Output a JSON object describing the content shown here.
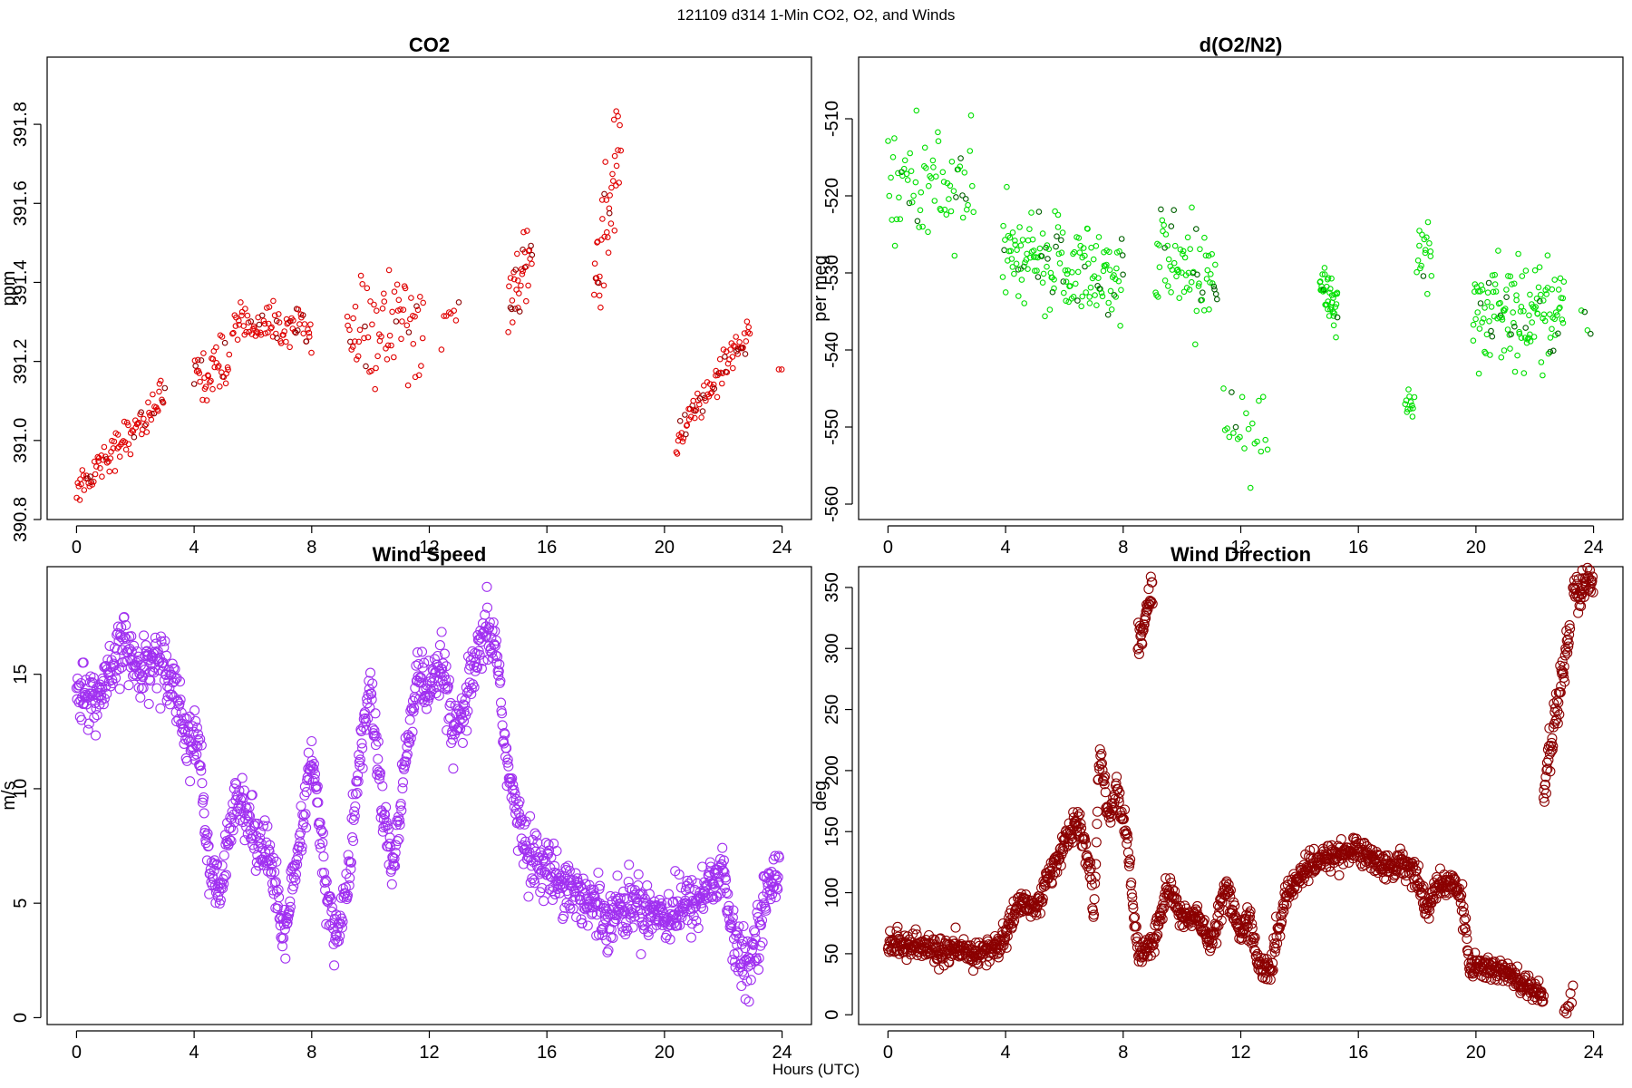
{
  "figure": {
    "main_title": "121109   d314   1-Min CO2, O2, and Winds",
    "shared_xlabel": "Hours (UTC)"
  },
  "chart_data": [
    {
      "type": "scatter",
      "title": "CO2",
      "xlabel": "",
      "ylabel": "ppm",
      "xlim": [
        -1,
        25
      ],
      "ylim": [
        390.8,
        391.97
      ],
      "xticks": [
        0,
        4,
        8,
        12,
        16,
        20,
        24
      ],
      "yticks": [
        390.8,
        391.0,
        391.2,
        391.4,
        391.6,
        391.8
      ],
      "yticklabels": [
        "390.8",
        "391.0",
        "391.2",
        "391.4",
        "391.6",
        "391.8"
      ],
      "grid": false,
      "color": "#e00000",
      "dark_color": "#8a0000",
      "marker_radius_factor": 0.55,
      "segments": [
        {
          "x0": 0.0,
          "x1": 3.0,
          "y0": 390.88,
          "y1": 391.11,
          "n": 90,
          "noise": 0.04
        },
        {
          "x0": 4.0,
          "x1": 5.2,
          "y0": 391.16,
          "y1": 391.2,
          "n": 40,
          "noise": 0.05
        },
        {
          "x0": 5.3,
          "x1": 8.0,
          "y0": 391.3,
          "y1": 391.28,
          "n": 80,
          "noise": 0.04
        },
        {
          "x0": 9.2,
          "x1": 11.8,
          "y0": 391.27,
          "y1": 391.3,
          "n": 70,
          "noise": 0.12
        },
        {
          "x0": 12.4,
          "x1": 13.0,
          "y0": 391.28,
          "y1": 391.3,
          "n": 8,
          "noise": 0.04
        },
        {
          "x0": 14.7,
          "x1": 15.5,
          "y0": 391.35,
          "y1": 391.45,
          "n": 35,
          "noise": 0.07
        },
        {
          "x0": 17.6,
          "x1": 18.5,
          "y0": 391.4,
          "y1": 391.75,
          "n": 40,
          "noise": 0.14
        },
        {
          "x0": 20.4,
          "x1": 22.9,
          "y0": 391.0,
          "y1": 391.28,
          "n": 80,
          "noise": 0.04
        },
        {
          "x0": 23.9,
          "x1": 24.0,
          "y0": 391.18,
          "y1": 391.18,
          "n": 2,
          "noise": 0.0
        }
      ]
    },
    {
      "type": "scatter",
      "title": "d(O2/N2)",
      "xlabel": "",
      "ylabel": "per meg",
      "xlim": [
        -1,
        25
      ],
      "ylim": [
        -562,
        -502
      ],
      "xticks": [
        0,
        4,
        8,
        12,
        16,
        20,
        24
      ],
      "yticks": [
        -560,
        -550,
        -540,
        -530,
        -520,
        -510
      ],
      "yticklabels": [
        "-560",
        "-550",
        "-540",
        "-530",
        "-520",
        "-510"
      ],
      "grid": false,
      "color": "#00e000",
      "dark_color": "#006000",
      "marker_radius_factor": 0.55,
      "segments": [
        {
          "x0": 0.0,
          "x1": 2.9,
          "y0": -518,
          "y1": -520,
          "n": 70,
          "noise": 6.5
        },
        {
          "x0": 3.9,
          "x1": 8.0,
          "y0": -528,
          "y1": -530,
          "n": 150,
          "noise": 5.5
        },
        {
          "x0": 9.1,
          "x1": 11.2,
          "y0": -528,
          "y1": -530,
          "n": 70,
          "noise": 6.0
        },
        {
          "x0": 11.4,
          "x1": 12.9,
          "y0": -548,
          "y1": -552,
          "n": 22,
          "noise": 4.5
        },
        {
          "x0": 14.7,
          "x1": 15.3,
          "y0": -533,
          "y1": -535,
          "n": 40,
          "noise": 4.5
        },
        {
          "x0": 17.6,
          "x1": 17.9,
          "y0": -546,
          "y1": -547,
          "n": 12,
          "noise": 2.5
        },
        {
          "x0": 18.0,
          "x1": 18.5,
          "y0": -526,
          "y1": -526,
          "n": 18,
          "noise": 5.0
        },
        {
          "x0": 19.9,
          "x1": 23.0,
          "y0": -535,
          "y1": -535,
          "n": 130,
          "noise": 5.5
        },
        {
          "x0": 23.6,
          "x1": 23.9,
          "y0": -536,
          "y1": -536,
          "n": 4,
          "noise": 1.5
        }
      ]
    },
    {
      "type": "scatter",
      "title": "Wind Speed",
      "xlabel": "",
      "ylabel": "m/s",
      "xlim": [
        -1,
        25
      ],
      "ylim": [
        -0.3,
        19.7
      ],
      "xticks": [
        0,
        4,
        8,
        12,
        16,
        20,
        24
      ],
      "yticks": [
        0,
        5,
        10,
        15
      ],
      "yticklabels": [
        "0",
        "5",
        "10",
        "15"
      ],
      "grid": false,
      "color": "#a030f0",
      "dark_color": "#a030f0",
      "marker_radius_factor": 1.0,
      "profile": [
        [
          0,
          14.3
        ],
        [
          0.7,
          13.8
        ],
        [
          1.2,
          15.0
        ],
        [
          1.6,
          16.5
        ],
        [
          2.0,
          15.2
        ],
        [
          2.8,
          15.7
        ],
        [
          3.3,
          14.8
        ],
        [
          3.7,
          12.4
        ],
        [
          4.2,
          11.7
        ],
        [
          4.5,
          6.2
        ],
        [
          4.9,
          5.5
        ],
        [
          5.5,
          10.2
        ],
        [
          6.0,
          8.0
        ],
        [
          6.5,
          7.5
        ],
        [
          7.0,
          3.5
        ],
        [
          7.5,
          6.5
        ],
        [
          8.0,
          11.5
        ],
        [
          8.5,
          5.5
        ],
        [
          8.8,
          3.5
        ],
        [
          9.2,
          5.5
        ],
        [
          9.6,
          11.0
        ],
        [
          10.0,
          14.5
        ],
        [
          10.4,
          9.0
        ],
        [
          10.8,
          6.5
        ],
        [
          11.3,
          12.5
        ],
        [
          11.6,
          15.0
        ],
        [
          12.0,
          14.0
        ],
        [
          12.5,
          15.5
        ],
        [
          12.8,
          12.0
        ],
        [
          13.2,
          13.5
        ],
        [
          13.6,
          15.5
        ],
        [
          14.0,
          17.0
        ],
        [
          14.3,
          16.0
        ],
        [
          14.6,
          11.5
        ],
        [
          15.0,
          8.5
        ],
        [
          15.5,
          7.0
        ],
        [
          16.0,
          6.5
        ],
        [
          17.0,
          5.5
        ],
        [
          18.0,
          4.5
        ],
        [
          19.0,
          5.0
        ],
        [
          20.0,
          4.5
        ],
        [
          21.0,
          5.0
        ],
        [
          22.0,
          6.5
        ],
        [
          22.3,
          3.5
        ],
        [
          22.8,
          2.0
        ],
        [
          23.4,
          5.0
        ],
        [
          23.9,
          6.8
        ]
      ],
      "n": 1400,
      "noise": 0.9
    },
    {
      "type": "scatter",
      "title": "Wind Direction",
      "xlabel": "",
      "ylabel": "deg",
      "xlim": [
        -1,
        25
      ],
      "ylim": [
        -8,
        367
      ],
      "xticks": [
        0,
        4,
        8,
        12,
        16,
        20,
        24
      ],
      "yticks": [
        0,
        50,
        100,
        150,
        200,
        250,
        300,
        350
      ],
      "yticklabels": [
        "0",
        "50",
        "100",
        "150",
        "200",
        "250",
        "300",
        "350"
      ],
      "grid": false,
      "color": "#8b0000",
      "dark_color": "#8b0000",
      "marker_radius_factor": 1.0,
      "profile": [
        [
          0,
          60
        ],
        [
          1,
          55
        ],
        [
          2,
          52
        ],
        [
          3,
          50
        ],
        [
          3.7,
          55
        ],
        [
          4.0,
          65
        ],
        [
          4.5,
          95
        ],
        [
          5.0,
          85
        ],
        [
          5.5,
          115
        ],
        [
          6.0,
          140
        ],
        [
          6.5,
          160
        ],
        [
          6.9,
          110
        ],
        [
          7.0,
          80
        ],
        [
          7.2,
          220
        ],
        [
          7.5,
          160
        ],
        [
          7.8,
          185
        ],
        [
          8.1,
          150
        ],
        [
          8.3,
          100
        ],
        [
          8.5,
          50
        ],
        [
          9.0,
          55
        ],
        [
          9.5,
          105
        ],
        [
          10.0,
          80
        ],
        [
          10.5,
          80
        ],
        [
          11.0,
          60
        ],
        [
          11.5,
          105
        ],
        [
          12.0,
          65
        ],
        [
          12.3,
          80
        ],
        [
          12.6,
          40
        ],
        [
          13.0,
          35
        ],
        [
          13.5,
          95
        ],
        [
          14.0,
          115
        ],
        [
          15.0,
          130
        ],
        [
          16.0,
          135
        ],
        [
          17.0,
          120
        ],
        [
          17.5,
          125
        ],
        [
          18.0,
          115
        ],
        [
          18.3,
          85
        ],
        [
          18.7,
          105
        ],
        [
          19.2,
          110
        ],
        [
          19.5,
          95
        ],
        [
          19.8,
          40
        ],
        [
          20.5,
          38
        ],
        [
          21.0,
          35
        ],
        [
          21.5,
          25
        ],
        [
          22.0,
          18
        ],
        [
          22.3,
          17
        ]
      ],
      "n": 1300,
      "noise": 8,
      "extra_clusters": [
        {
          "x0": 8.5,
          "x1": 9.0,
          "y0": 300,
          "y1": 355,
          "n": 35
        },
        {
          "x0": 22.3,
          "x1": 23.2,
          "y0": 180,
          "y1": 320,
          "n": 60
        },
        {
          "x0": 23.3,
          "x1": 24.0,
          "y0": 340,
          "y1": 358,
          "n": 45
        },
        {
          "x0": 23.0,
          "x1": 23.3,
          "y0": 2,
          "y1": 20,
          "n": 8
        }
      ]
    }
  ]
}
